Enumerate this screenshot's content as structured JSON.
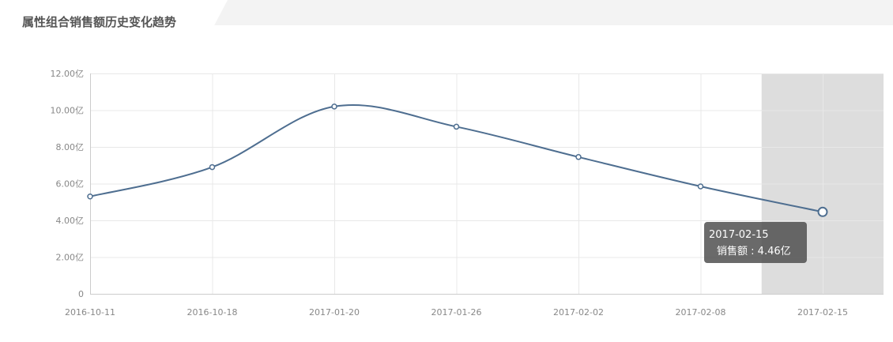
{
  "header": {
    "title": "属性组合销售额历史变化趋势"
  },
  "tooltip": {
    "date": "2017-02-15",
    "series_label": "销售额",
    "separator": " : ",
    "value_text": "4.46亿"
  },
  "colors": {
    "line": "#4e6e90",
    "grid": "#e8e8e8",
    "highlight_band": "#dddddd",
    "axis": "#cccccc"
  },
  "chart_data": {
    "type": "line",
    "title": "属性组合销售额历史变化趋势",
    "categories": [
      "2016-10-11",
      "2016-10-18",
      "2017-01-20",
      "2017-01-26",
      "2017-02-02",
      "2017-02-08",
      "2017-02-15"
    ],
    "series": [
      {
        "name": "销售额",
        "values": [
          5.3,
          6.9,
          10.2,
          9.1,
          7.45,
          5.85,
          4.46
        ]
      }
    ],
    "ylim": [
      0,
      12
    ],
    "y_ticks": [
      0,
      2,
      4,
      6,
      8,
      10,
      12
    ],
    "y_tick_labels": [
      "0",
      "2.00亿",
      "4.00亿",
      "6.00亿",
      "8.00亿",
      "10.00亿",
      "12.00亿"
    ],
    "grid": true,
    "smooth": true,
    "highlighted_category": "2017-02-15"
  }
}
